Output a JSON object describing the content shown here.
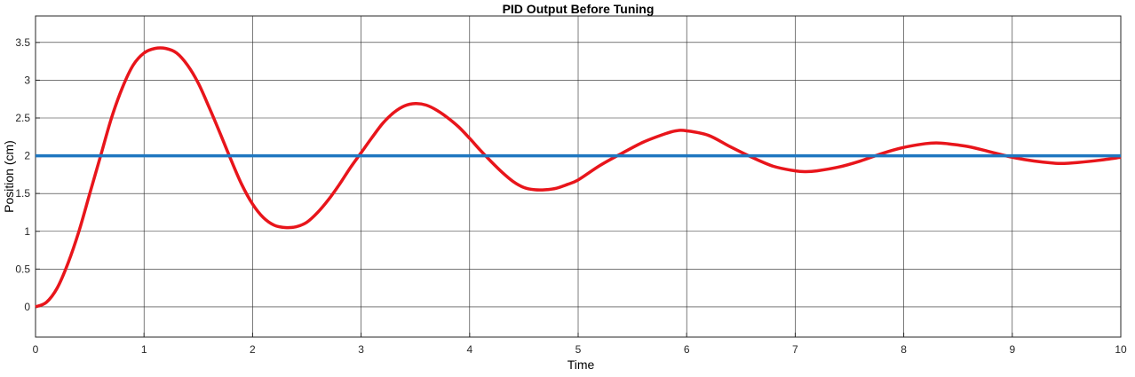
{
  "chart_data": {
    "type": "line",
    "title": "PID Output Before Tuning",
    "xlabel": "Time",
    "ylabel": "Position (cm)",
    "xlim": [
      0,
      10
    ],
    "ylim": [
      -0.4,
      3.85
    ],
    "xticks": [
      0,
      1,
      2,
      3,
      4,
      5,
      6,
      7,
      8,
      9,
      10
    ],
    "yticks": [
      0,
      0.5,
      1,
      1.5,
      2,
      2.5,
      3,
      3.5
    ],
    "grid": true,
    "series": [
      {
        "color": "#e8151b",
        "x": [
          0,
          0.1,
          0.2,
          0.3,
          0.4,
          0.5,
          0.6,
          0.7,
          0.8,
          0.9,
          1.0,
          1.1,
          1.2,
          1.3,
          1.4,
          1.5,
          1.6,
          1.7,
          1.8,
          1.9,
          2.0,
          2.1,
          2.2,
          2.3,
          2.4,
          2.5,
          2.6,
          2.7,
          2.8,
          2.9,
          3.0,
          3.1,
          3.2,
          3.3,
          3.4,
          3.5,
          3.6,
          3.7,
          3.8,
          3.9,
          4.0,
          4.1,
          4.2,
          4.3,
          4.4,
          4.5,
          4.6,
          4.7,
          4.8,
          4.9,
          5.0,
          5.2,
          5.4,
          5.6,
          5.8,
          5.9,
          6.0,
          6.2,
          6.4,
          6.6,
          6.8,
          7.0,
          7.1,
          7.2,
          7.4,
          7.6,
          7.8,
          8.0,
          8.2,
          8.3,
          8.4,
          8.6,
          8.8,
          9.0,
          9.2,
          9.4,
          9.5,
          9.6,
          9.8,
          10.0
        ],
        "y": [
          0,
          0.06,
          0.25,
          0.58,
          1.0,
          1.5,
          2.0,
          2.5,
          2.9,
          3.2,
          3.36,
          3.42,
          3.42,
          3.36,
          3.2,
          2.96,
          2.64,
          2.3,
          1.95,
          1.62,
          1.36,
          1.18,
          1.08,
          1.05,
          1.06,
          1.12,
          1.25,
          1.42,
          1.62,
          1.84,
          2.04,
          2.24,
          2.43,
          2.57,
          2.66,
          2.69,
          2.67,
          2.6,
          2.5,
          2.38,
          2.23,
          2.07,
          1.92,
          1.78,
          1.66,
          1.58,
          1.55,
          1.55,
          1.57,
          1.62,
          1.68,
          1.87,
          2.03,
          2.18,
          2.29,
          2.33,
          2.33,
          2.27,
          2.12,
          1.98,
          1.86,
          1.8,
          1.79,
          1.8,
          1.85,
          1.93,
          2.03,
          2.11,
          2.16,
          2.17,
          2.16,
          2.12,
          2.05,
          1.98,
          1.93,
          1.9,
          1.9,
          1.91,
          1.94,
          1.98
        ]
      },
      {
        "color": "#1f77c0",
        "x": [
          0,
          10
        ],
        "y": [
          2,
          2
        ]
      }
    ]
  }
}
